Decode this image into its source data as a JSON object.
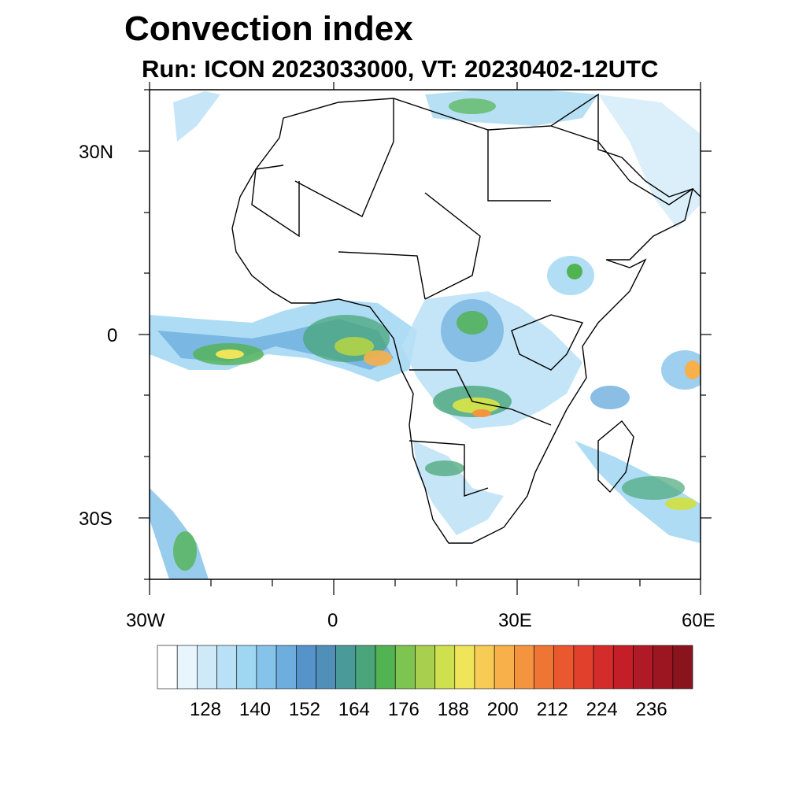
{
  "title": "Convection index",
  "subtitle": "Run: ICON 2023033000,  VT: 20230402-12UTC",
  "axes": {
    "lat_labels": [
      "30N",
      "0",
      "30S"
    ],
    "lon_labels": [
      "30W",
      "0",
      "30E",
      "60E"
    ]
  },
  "legend": {
    "colors": [
      "#ffffff",
      "#e9f5fc",
      "#cfe9f8",
      "#b8e0f6",
      "#9fd6f2",
      "#86c3ea",
      "#6daede",
      "#5693ca",
      "#4f8fb8",
      "#4a9a9a",
      "#4aa67a",
      "#52b352",
      "#7dc450",
      "#a8cf4e",
      "#cfe04e",
      "#f0e45a",
      "#f7cc54",
      "#f7b04a",
      "#f5943e",
      "#ef7535",
      "#e9582f",
      "#e0402c",
      "#d42c2a",
      "#c41f28",
      "#b01926",
      "#9c1622",
      "#8a141e"
    ],
    "tick_labels": [
      "128",
      "140",
      "152",
      "164",
      "176",
      "188",
      "200",
      "212",
      "224",
      "236"
    ]
  },
  "colors": {
    "frame": "#000000",
    "coast": "#000000"
  }
}
